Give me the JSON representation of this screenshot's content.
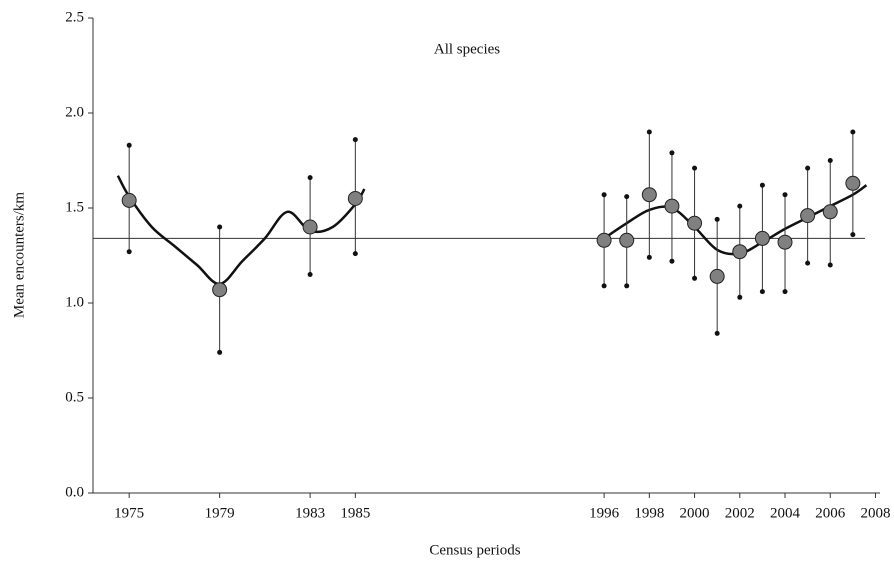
{
  "chart_data": {
    "type": "errorbar",
    "title": "All species",
    "xlabel": "Census periods",
    "ylabel": "Mean encounters/km",
    "x": [
      1975,
      1979,
      1983,
      1985,
      1996,
      1997,
      1998,
      1999,
      2000,
      2001,
      2002,
      2003,
      2004,
      2005,
      2006,
      2007
    ],
    "values": [
      1.54,
      1.07,
      1.4,
      1.55,
      1.33,
      1.33,
      1.57,
      1.51,
      1.42,
      1.14,
      1.27,
      1.34,
      1.32,
      1.46,
      1.48,
      1.63
    ],
    "upper": [
      1.83,
      1.4,
      1.66,
      1.86,
      1.57,
      1.56,
      1.9,
      1.79,
      1.71,
      1.44,
      1.51,
      1.62,
      1.57,
      1.71,
      1.75,
      1.9
    ],
    "lower": [
      1.27,
      0.74,
      1.15,
      1.26,
      1.09,
      1.09,
      1.24,
      1.22,
      1.13,
      0.84,
      1.03,
      1.06,
      1.06,
      1.21,
      1.2,
      1.36
    ],
    "color": "#808080",
    "fit": {
      "x": [
        1974.5,
        1975,
        1976,
        1977,
        1978,
        1979,
        1980,
        1981,
        1982,
        1983,
        1984,
        1985,
        1985.4,
        null,
        1996,
        1997,
        1998,
        1999,
        2000,
        2001,
        2002,
        2003,
        2004,
        2005,
        2006,
        2007,
        2007.6
      ],
      "values": [
        1.67,
        1.56,
        1.4,
        1.3,
        1.2,
        1.1,
        1.22,
        1.34,
        1.48,
        1.38,
        1.4,
        1.52,
        1.6,
        null,
        1.34,
        1.42,
        1.49,
        1.5,
        1.4,
        1.28,
        1.26,
        1.32,
        1.39,
        1.45,
        1.51,
        1.57,
        1.62
      ],
      "color": "#111111"
    },
    "reference_line": 1.34,
    "xlim": [
      1973.4,
      2008.2
    ],
    "ylim": [
      0,
      2.5
    ],
    "xticks": [
      1975,
      1979,
      1983,
      1985,
      1996,
      1998,
      2000,
      2002,
      2004,
      2006,
      2008
    ],
    "yticks": [
      {
        "value": 0,
        "label": "0.0"
      },
      0.5,
      {
        "value": 1,
        "label": "1.0"
      },
      1.5,
      {
        "value": 2,
        "label": "2.0"
      },
      2.5
    ]
  }
}
